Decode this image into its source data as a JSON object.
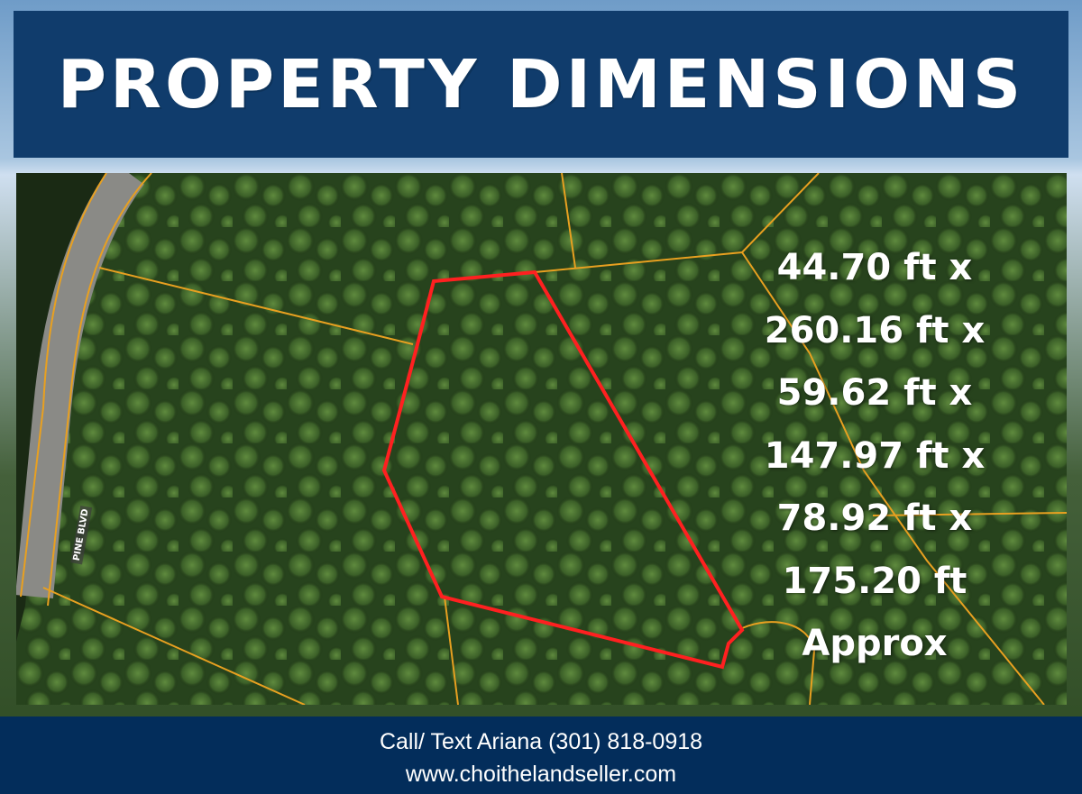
{
  "header": {
    "title": "PROPERTY DIMENSIONS"
  },
  "map": {
    "road_label": "PINE BLVD",
    "boundary_color": "#ff2020",
    "parcel_line_color": "#e8a020"
  },
  "dimensions": [
    "44.70 ft x",
    "260.16 ft x",
    "59.62 ft x",
    "147.97 ft x",
    "78.92 ft x",
    "175.20 ft",
    "Approx"
  ],
  "footer": {
    "contact": "Call/ Text Ariana (301) 818-0918",
    "website": "www.choithelandseller.com"
  }
}
